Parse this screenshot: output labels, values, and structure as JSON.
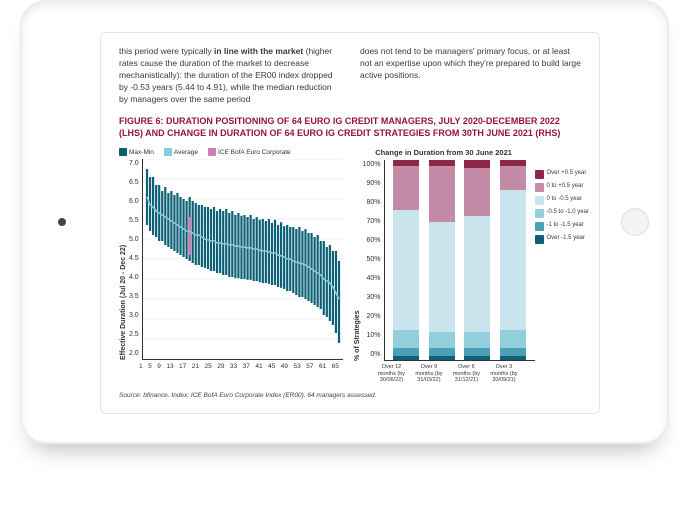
{
  "body": {
    "left": {
      "p1a": "this period were typically ",
      "p1b": "in line with the market",
      "p1c": " (higher rates cause the duration of the market to decrease mechanistically): the duration of the ER00 index dropped by -0.53 years (5.44 to 4.91), while the median reduction by managers over the same period"
    },
    "right": {
      "p1": "does not tend to be managers' primary focus, or at least not an expertise upon which they're prepared to build large active positions."
    }
  },
  "figure": {
    "title": "FIGURE 6: DURATION POSITIONING OF 64 EURO IG CREDIT MANAGERS, JULY 2020-DECEMBER 2022 (LHS) AND CHANGE IN DURATION OF 64 EURO IG CREDIT STRATEGIES FROM 30TH JUNE 2021 (RHS)"
  },
  "lhs": {
    "legend": {
      "maxmin": {
        "label": "Max-Min",
        "color": "#0d6076"
      },
      "avg": {
        "label": "Average",
        "color": "#7fcfe0"
      },
      "ice": {
        "label": "ICE BofA Euro Corporate",
        "color": "#c97fb0"
      }
    },
    "ylabel": "Effective Duration (Jul 20 - Dec 22)",
    "ymin": 2.0,
    "ymax": 7.0,
    "yticks": [
      "7.0",
      "6.5",
      "6.0",
      "5.5",
      "5.0",
      "4.5",
      "4.0",
      "3.5",
      "3.0",
      "2.5",
      "2.0"
    ],
    "xticks": [
      "1",
      "5",
      "9",
      "13",
      "17",
      "21",
      "25",
      "29",
      "33",
      "37",
      "41",
      "45",
      "49",
      "53",
      "57",
      "61",
      "65"
    ],
    "grid_color": "#dddddd",
    "avg_color": "#7fcfe0",
    "bench_color": "#c97fb0",
    "bench_x": 14,
    "bench_lo": 4.6,
    "bench_hi": 5.55,
    "series": {
      "avg": [
        6.05,
        5.85,
        5.8,
        5.7,
        5.65,
        5.6,
        5.55,
        5.5,
        5.45,
        5.4,
        5.35,
        5.3,
        5.25,
        5.2,
        5.2,
        5.15,
        5.1,
        5.1,
        5.05,
        5.0,
        4.98,
        4.95,
        4.95,
        4.9,
        4.9,
        4.88,
        4.88,
        4.85,
        4.85,
        4.82,
        4.82,
        4.8,
        4.8,
        4.78,
        4.78,
        4.75,
        4.75,
        4.72,
        4.7,
        4.7,
        4.68,
        4.65,
        4.65,
        4.6,
        4.58,
        4.55,
        4.5,
        4.5,
        4.45,
        4.42,
        4.4,
        4.38,
        4.35,
        4.3,
        4.25,
        4.2,
        4.15,
        4.1,
        4.0,
        3.95,
        3.9,
        3.8,
        3.65,
        3.5
      ],
      "hi": [
        6.75,
        6.55,
        6.55,
        6.35,
        6.35,
        6.2,
        6.3,
        6.15,
        6.2,
        6.1,
        6.15,
        6.05,
        6.0,
        5.95,
        6.05,
        5.95,
        5.9,
        5.85,
        5.85,
        5.8,
        5.8,
        5.75,
        5.8,
        5.7,
        5.75,
        5.7,
        5.75,
        5.65,
        5.7,
        5.6,
        5.65,
        5.58,
        5.6,
        5.55,
        5.6,
        5.5,
        5.55,
        5.48,
        5.5,
        5.45,
        5.5,
        5.4,
        5.48,
        5.35,
        5.42,
        5.32,
        5.35,
        5.3,
        5.3,
        5.25,
        5.3,
        5.2,
        5.25,
        5.15,
        5.15,
        5.05,
        5.1,
        4.95,
        4.95,
        4.8,
        4.85,
        4.7,
        4.7,
        4.45
      ],
      "lo": [
        5.35,
        5.2,
        5.1,
        5.05,
        4.95,
        4.95,
        4.85,
        4.8,
        4.75,
        4.7,
        4.65,
        4.6,
        4.55,
        4.5,
        4.45,
        4.4,
        4.35,
        4.35,
        4.3,
        4.28,
        4.25,
        4.2,
        4.2,
        4.15,
        4.15,
        4.1,
        4.1,
        4.05,
        4.05,
        4.02,
        4.02,
        4.0,
        4.0,
        3.98,
        3.98,
        3.95,
        3.95,
        3.92,
        3.9,
        3.9,
        3.88,
        3.85,
        3.85,
        3.8,
        3.78,
        3.75,
        3.7,
        3.7,
        3.65,
        3.6,
        3.55,
        3.55,
        3.5,
        3.45,
        3.4,
        3.35,
        3.3,
        3.25,
        3.1,
        3.05,
        2.95,
        2.85,
        2.65,
        2.4
      ]
    }
  },
  "rhs": {
    "title": "Change in Duration from 30 June 2021",
    "ylabel": "% of Strategies",
    "yticks": [
      "100%",
      "90%",
      "80%",
      "70%",
      "60%",
      "50%",
      "40%",
      "30%",
      "20%",
      "10%",
      "0%"
    ],
    "legend": [
      {
        "label": "Over +0.5 year",
        "color": "#8e2648"
      },
      {
        "label": "0 to +0.5 year",
        "color": "#c38ba6"
      },
      {
        "label": "0 to -0.5 year",
        "color": "#c9e4ec"
      },
      {
        "label": "-0.5 to -1.0 year",
        "color": "#93cedd"
      },
      {
        "label": "-1 to -1.5 year",
        "color": "#4aa0b6"
      },
      {
        "label": "Over -1.5 year",
        "color": "#0d6076"
      }
    ],
    "bars": [
      {
        "label": "Over 12 months (by 30/06/22)",
        "seg": [
          3,
          22,
          60,
          9,
          4,
          2
        ]
      },
      {
        "label": "Over 9 months (by 31/03/22)",
        "seg": [
          3,
          28,
          55,
          8,
          4,
          2
        ]
      },
      {
        "label": "Over 6 months (by 31/12/21)",
        "seg": [
          4,
          24,
          58,
          8,
          4,
          2
        ]
      },
      {
        "label": "Over 3 months (by 30/09/21)",
        "seg": [
          3,
          12,
          70,
          9,
          4,
          2
        ]
      }
    ]
  },
  "source": "Source: bfinance. Index: ICE BofA Euro Corporate Index (ER00). 64 managers assessed."
}
